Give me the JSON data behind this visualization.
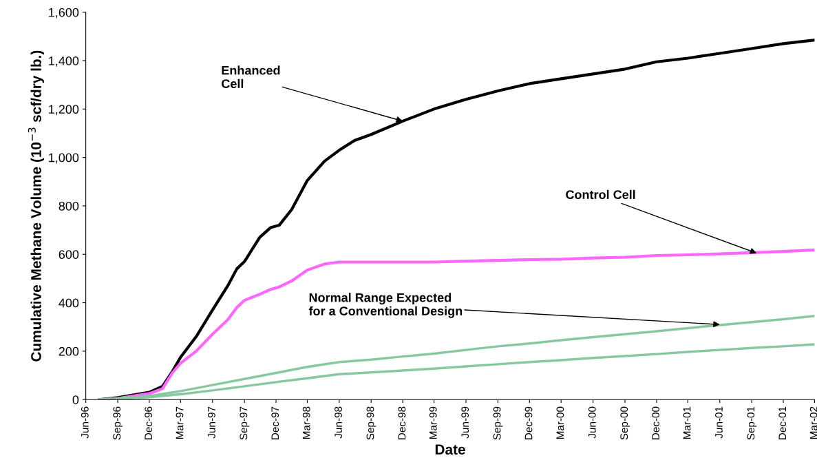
{
  "chart_data": {
    "type": "line",
    "xlabel": "Date",
    "ylabel": "Cumulative Methane Volume (10$^{−3}$ scf/dry lb.)",
    "xlim": [
      "1996-06",
      "2002-03"
    ],
    "xticks": [
      {
        "value": "1996-06",
        "label": "Jun-96"
      },
      {
        "value": "1996-09",
        "label": "Sep-96"
      },
      {
        "value": "1996-12",
        "label": "Dec-96"
      },
      {
        "value": "1997-03",
        "label": "Mar-97"
      },
      {
        "value": "1997-06",
        "label": "Jun-97"
      },
      {
        "value": "1997-09",
        "label": "Sep-97"
      },
      {
        "value": "1997-12",
        "label": "Dec-97"
      },
      {
        "value": "1998-03",
        "label": "Mar-98"
      },
      {
        "value": "1998-06",
        "label": "Jun-98"
      },
      {
        "value": "1998-09",
        "label": "Sep-98"
      },
      {
        "value": "1998-12",
        "label": "Dec-98"
      },
      {
        "value": "1999-03",
        "label": "Mar-99"
      },
      {
        "value": "1999-06",
        "label": "Jun-99"
      },
      {
        "value": "1999-09",
        "label": "Sep-99"
      },
      {
        "value": "1999-12",
        "label": "Dec-99"
      },
      {
        "value": "2000-03",
        "label": "Mar-00"
      },
      {
        "value": "2000-06",
        "label": "Jun-00"
      },
      {
        "value": "2000-09",
        "label": "Sep-00"
      },
      {
        "value": "2000-12",
        "label": "Dec-00"
      },
      {
        "value": "2001-03",
        "label": "Mar-01"
      },
      {
        "value": "2001-06",
        "label": "Jun-01"
      },
      {
        "value": "2001-09",
        "label": "Sep-01"
      },
      {
        "value": "2001-12",
        "label": "Dec-01"
      },
      {
        "value": "2002-03",
        "label": "Mar-02"
      }
    ],
    "ylim": [
      0,
      1600
    ],
    "yticks": [
      0,
      200,
      400,
      600,
      800,
      {
        "value": 1000,
        "label": "1,000"
      },
      {
        "value": 1200,
        "label": "1,200"
      },
      {
        "value": 1400,
        "label": "1,400"
      },
      {
        "value": 1600,
        "label": "1,600"
      }
    ],
    "grid": false,
    "legend": false,
    "marker": "none",
    "line_style": "solid",
    "series": [
      {
        "color": "#000000",
        "x": [
          "1996-07-10",
          "1996-09",
          "1996-12",
          "1997-01-08",
          "1997-02-05",
          "1997-03",
          "1997-04-15",
          "1997-06",
          "1997-07-15",
          "1997-08-10",
          "1997-09",
          "1997-10-15",
          "1997-11-15",
          "1997-12-10",
          "1998-01-15",
          "1998-03",
          "1998-04-20",
          "1998-06",
          "1998-07-15",
          "1998-09",
          "1998-12",
          "1999-03",
          "1999-06",
          "1999-09",
          "1999-12",
          "2000-03",
          "2000-06",
          "2000-09",
          "2000-12",
          "2001-03",
          "2001-06",
          "2001-09",
          "2001-12",
          "2002-03"
        ],
        "values": [
          0,
          8,
          30,
          55,
          115,
          175,
          260,
          370,
          470,
          540,
          570,
          670,
          710,
          720,
          785,
          905,
          985,
          1030,
          1070,
          1095,
          1150,
          1200,
          1240,
          1275,
          1305,
          1325,
          1345,
          1365,
          1395,
          1410,
          1430,
          1450,
          1470,
          1485
        ]
      },
      {
        "color": "#ff66ff",
        "x": [
          "1996-07-10",
          "1996-09",
          "1996-12",
          "1997-01-08",
          "1997-02-05",
          "1997-03",
          "1997-04-15",
          "1997-06",
          "1997-07-15",
          "1997-08-10",
          "1997-09",
          "1997-10-15",
          "1997-11-15",
          "1997-12-10",
          "1998-01-15",
          "1998-03",
          "1998-04-20",
          "1998-06",
          "1998-09",
          "1998-12",
          "1999-03",
          "1999-06",
          "1999-09",
          "1999-12",
          "2000-03",
          "2000-06",
          "2000-09",
          "2000-12",
          "2001-03",
          "2001-06",
          "2001-09",
          "2001-12",
          "2002-03"
        ],
        "values": [
          0,
          5,
          25,
          45,
          110,
          150,
          200,
          270,
          330,
          380,
          410,
          435,
          455,
          465,
          490,
          535,
          560,
          568,
          568,
          568,
          568,
          572,
          575,
          578,
          580,
          585,
          588,
          595,
          598,
          602,
          607,
          612,
          618
        ]
      },
      {
        "color": "#88c8a0",
        "x": [
          "1996-07-10",
          "1996-09",
          "1996-12",
          "1997-03",
          "1997-06",
          "1997-09",
          "1997-12",
          "1998-03",
          "1998-06",
          "1998-09",
          "1998-12",
          "1999-03",
          "1999-06",
          "1999-09",
          "1999-12",
          "2000-03",
          "2000-06",
          "2000-09",
          "2000-12",
          "2001-03",
          "2001-06",
          "2001-09",
          "2001-12",
          "2002-03"
        ],
        "values": [
          0,
          5,
          15,
          35,
          60,
          85,
          110,
          135,
          155,
          165,
          178,
          190,
          205,
          220,
          232,
          245,
          258,
          270,
          282,
          295,
          308,
          320,
          332,
          345
        ]
      },
      {
        "color": "#88c8a0",
        "x": [
          "1996-07-10",
          "1996-09",
          "1996-12",
          "1997-03",
          "1997-06",
          "1997-09",
          "1997-12",
          "1998-03",
          "1998-06",
          "1998-09",
          "1998-12",
          "1999-03",
          "1999-06",
          "1999-09",
          "1999-12",
          "2000-03",
          "2000-06",
          "2000-09",
          "2000-12",
          "2001-03",
          "2001-06",
          "2001-09",
          "2001-12",
          "2002-03"
        ],
        "values": [
          0,
          3,
          10,
          22,
          38,
          55,
          72,
          88,
          105,
          112,
          120,
          128,
          137,
          146,
          155,
          163,
          172,
          180,
          188,
          197,
          205,
          213,
          220,
          228
        ]
      }
    ],
    "annotations": [
      {
        "text": "Enhanced\nCell",
        "x": "1998-12",
        "y": 1150
      },
      {
        "text": "Control Cell",
        "x": "2001-09-15",
        "y": 605
      },
      {
        "text": "Normal Range Expected\nfor a Conventional Design",
        "x": "2001-06",
        "y": 310
      }
    ]
  }
}
